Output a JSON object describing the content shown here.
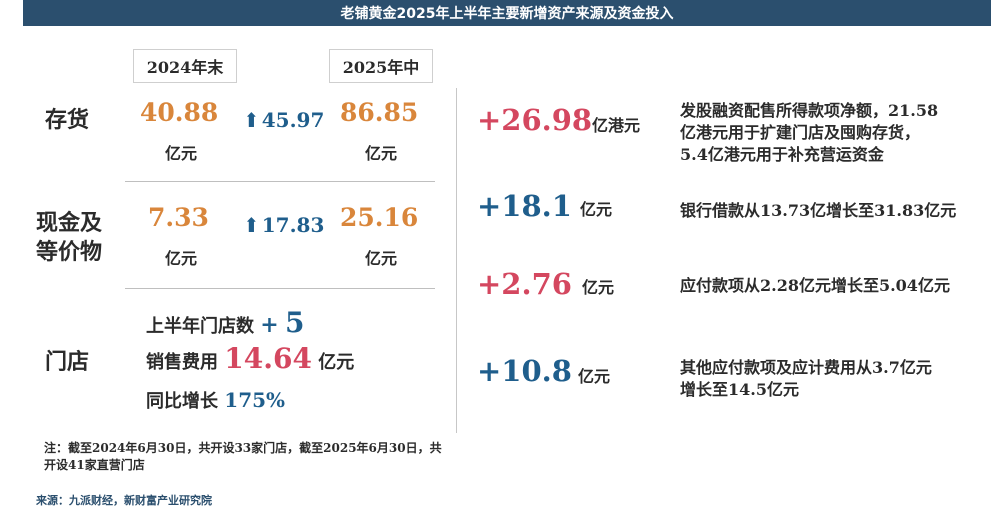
{
  "title": "老铺黄金2025年上半年主要新增资产来源及资金投入",
  "columns": {
    "left": "2024年末",
    "right": "2025年中"
  },
  "rows": [
    {
      "label": "存货",
      "start": "40.88",
      "start_unit": "亿元",
      "increase": "45.97",
      "end": "86.85",
      "end_unit": "亿元"
    },
    {
      "label_line1": "现金及",
      "label_line2": "等价物",
      "start": "7.33",
      "start_unit": "亿元",
      "increase": "17.83",
      "end": "25.16",
      "end_unit": "亿元"
    }
  ],
  "stores": {
    "label": "门店",
    "count_label": "上半年门店数",
    "count_plus": "+",
    "count_value": "5",
    "expense_label": "销售费用",
    "expense_value": "14.64",
    "expense_unit": "亿元",
    "growth_label": "同比增长",
    "growth_value": "175%"
  },
  "sources": [
    {
      "value": "+26.98",
      "unit": "亿港元",
      "desc": [
        "发股融资配售所得款项净额，21.58",
        "亿港元用于扩建门店及囤购存货，",
        "5.4亿港元用于补充营运资金"
      ],
      "color": "#d4475f"
    },
    {
      "value": "+18.1",
      "unit": "亿元",
      "desc": [
        "银行借款从13.73亿增长至31.83亿元"
      ],
      "color": "#1f5e8c"
    },
    {
      "value": "+2.76",
      "unit": "亿元",
      "desc": [
        "应付款项从2.28亿元增长至5.04亿元"
      ],
      "color": "#d4475f"
    },
    {
      "value": "+10.8",
      "unit": "亿元",
      "desc": [
        "其他应付款项及应计费用从3.7亿元",
        "增长至14.5亿元"
      ],
      "color": "#1f5e8c"
    }
  ],
  "note": "注：截至2024年6月30日，共开设33家门店，截至2025年6月30日，共开设41家直营门店",
  "source": "来源：九派财经，新财富产业研究院",
  "icons": {
    "increase": "up-arrow-icon"
  },
  "colors": {
    "banner": "#2b4f6e",
    "orange": "#d9863b",
    "blue": "#1f5e8c",
    "red": "#d4475f"
  }
}
